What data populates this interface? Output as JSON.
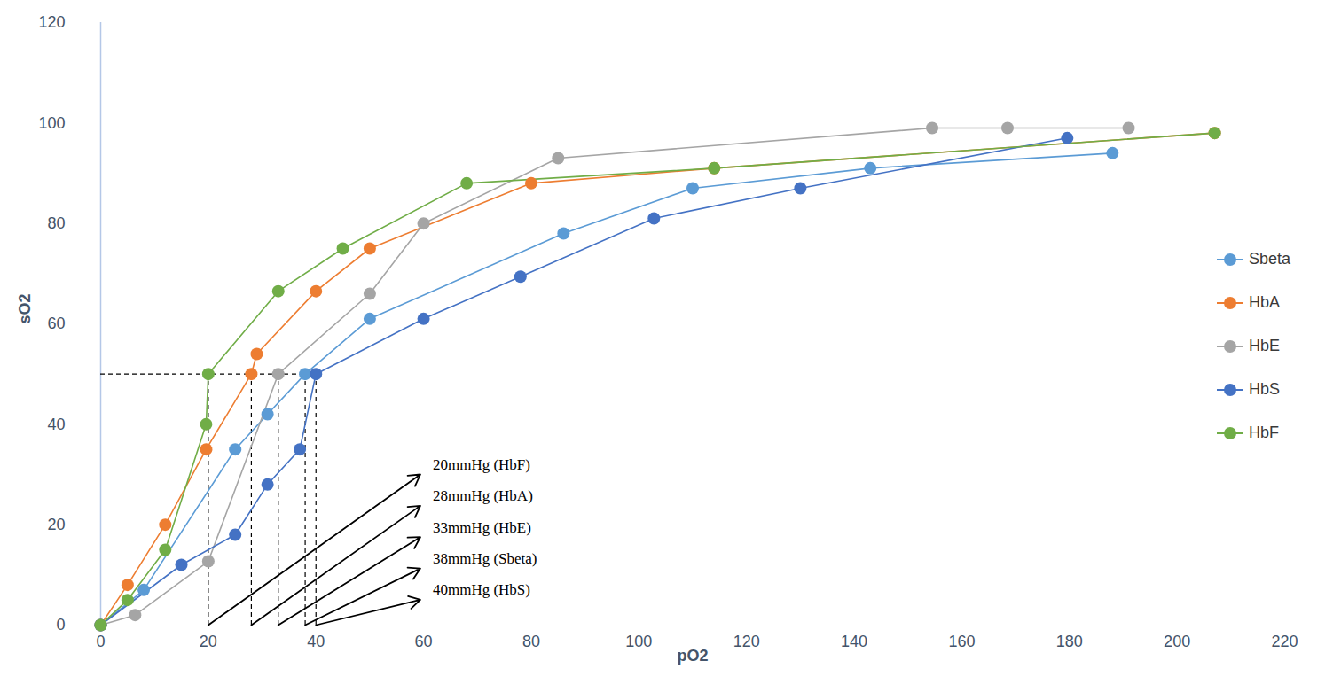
{
  "chart_data": {
    "type": "line",
    "x_label": "pO2",
    "y_label": "sO2",
    "xlim": [
      0,
      220
    ],
    "xticks": [
      0,
      20,
      40,
      60,
      80,
      100,
      120,
      140,
      160,
      180,
      200,
      220
    ],
    "ylim": [
      0,
      120
    ],
    "yticks": [
      0,
      20,
      40,
      60,
      80,
      100,
      120
    ],
    "grid": false,
    "legend": "right",
    "marker": "circle",
    "line_style": "solid",
    "series": [
      {
        "name": "Sbeta",
        "color": "#5b9bd5",
        "x": [
          0,
          8,
          25,
          31,
          38,
          50,
          86,
          110,
          143,
          188
        ],
        "values": [
          0,
          7,
          35,
          42,
          50,
          61,
          78,
          87,
          91,
          94
        ]
      },
      {
        "name": "HbA",
        "color": "#ed7d31",
        "x": [
          0,
          5,
          12,
          19.6,
          28,
          29,
          40,
          50,
          80,
          114,
          207
        ],
        "values": [
          0,
          8,
          20,
          35,
          50,
          54,
          66.5,
          75,
          88,
          91,
          98
        ]
      },
      {
        "name": "HbE",
        "color": "#a5a5a5",
        "x": [
          0,
          6.4,
          20,
          33,
          50,
          60,
          85,
          154.5,
          168.5,
          191
        ],
        "values": [
          0,
          2,
          12.7,
          50,
          66,
          80,
          93,
          99,
          99,
          99
        ]
      },
      {
        "name": "HbS",
        "color": "#4472c4",
        "x": [
          0,
          15,
          25,
          31,
          37,
          40,
          60,
          78,
          102.8,
          130,
          179.6
        ],
        "values": [
          0,
          12,
          18,
          28,
          35,
          50,
          61,
          69.4,
          81,
          87,
          97
        ]
      },
      {
        "name": "HbF",
        "color": "#70ad47",
        "x": [
          0,
          5,
          12,
          19.6,
          20,
          33,
          45,
          68,
          114,
          207
        ],
        "values": [
          0,
          5,
          15,
          40,
          50,
          66.5,
          75,
          88,
          91,
          98
        ]
      }
    ],
    "annotations": [
      {
        "x": 20,
        "y": 50,
        "text": "20mmHg (HbF)"
      },
      {
        "x": 28,
        "y": 50,
        "text": "28mmHg (HbA)"
      },
      {
        "x": 33,
        "y": 50,
        "text": "33mmHg (HbE)"
      },
      {
        "x": 38,
        "y": 50,
        "text": "38mmHg (Sbeta)"
      },
      {
        "x": 40,
        "y": 50,
        "text": "40mmHg (HbS)"
      }
    ]
  }
}
